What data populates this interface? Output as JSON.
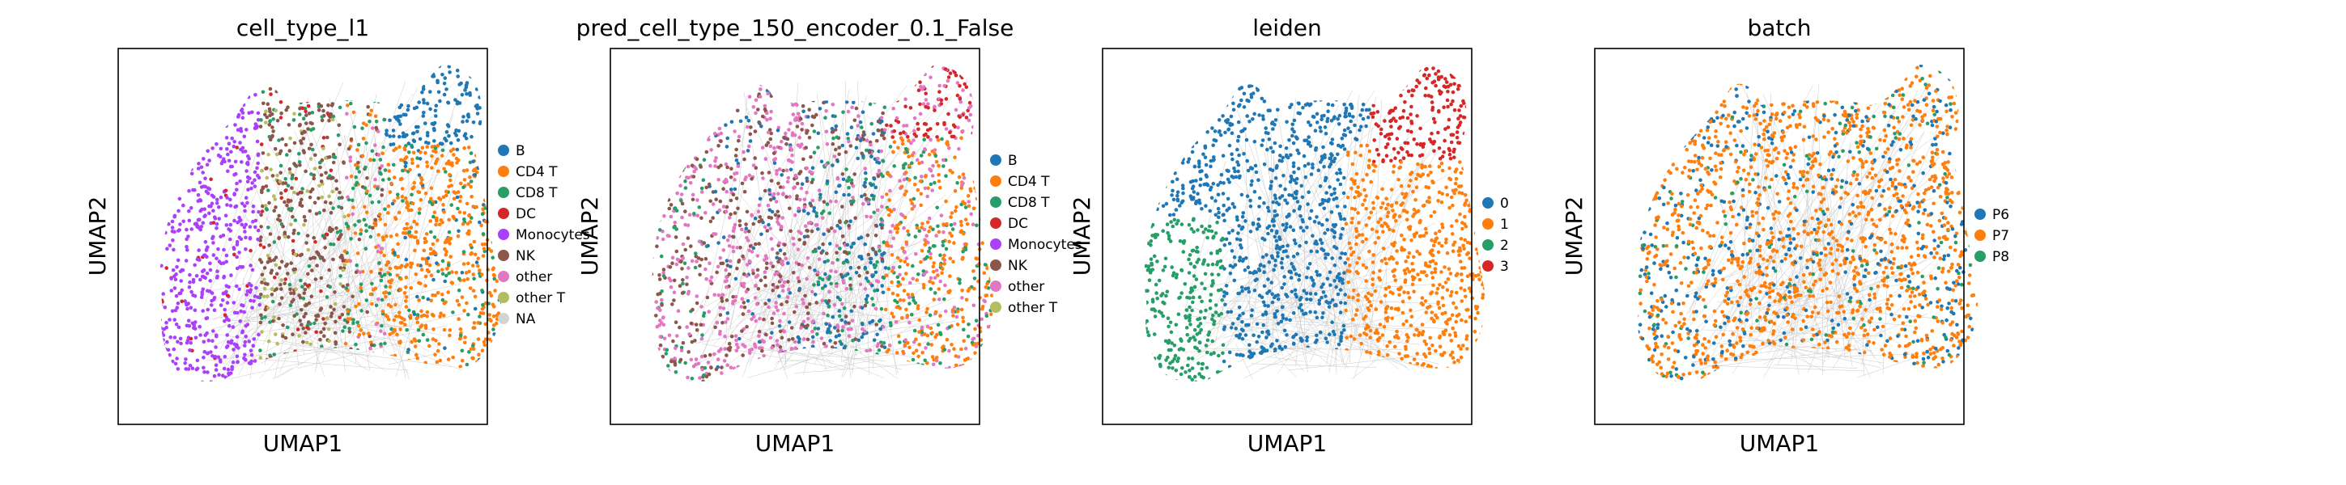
{
  "chart_data": [
    {
      "type": "scatter",
      "title": "cell_type_l1",
      "xlabel": "UMAP1",
      "ylabel": "UMAP2",
      "grid": false,
      "legend_position": "right",
      "legend": [
        {
          "label": "B",
          "color": "#1f77b4"
        },
        {
          "label": "CD4 T",
          "color": "#ff7f0e"
        },
        {
          "label": "CD8 T",
          "color": "#279e68"
        },
        {
          "label": "DC",
          "color": "#d62728"
        },
        {
          "label": "Monocytes",
          "color": "#aa40fc"
        },
        {
          "label": "NK",
          "color": "#8c564b"
        },
        {
          "label": "other",
          "color": "#e377c2"
        },
        {
          "label": "other T",
          "color": "#b5bd61"
        },
        {
          "label": "NA",
          "color": "#d3d3d3"
        }
      ]
    },
    {
      "type": "scatter",
      "title": "pred_cell_type_150_encoder_0.1_False",
      "xlabel": "UMAP1",
      "ylabel": "UMAP2",
      "grid": false,
      "legend_position": "right",
      "legend": [
        {
          "label": "B",
          "color": "#1f77b4"
        },
        {
          "label": "CD4 T",
          "color": "#ff7f0e"
        },
        {
          "label": "CD8 T",
          "color": "#279e68"
        },
        {
          "label": "DC",
          "color": "#d62728"
        },
        {
          "label": "Monocytes",
          "color": "#aa40fc"
        },
        {
          "label": "NK",
          "color": "#8c564b"
        },
        {
          "label": "other",
          "color": "#e377c2"
        },
        {
          "label": "other T",
          "color": "#b5bd61"
        }
      ]
    },
    {
      "type": "scatter",
      "title": "leiden",
      "xlabel": "UMAP1",
      "ylabel": "UMAP2",
      "grid": false,
      "legend_position": "right",
      "legend": [
        {
          "label": "0",
          "color": "#1f77b4"
        },
        {
          "label": "1",
          "color": "#ff7f0e"
        },
        {
          "label": "2",
          "color": "#279e68"
        },
        {
          "label": "3",
          "color": "#d62728"
        }
      ]
    },
    {
      "type": "scatter",
      "title": "batch",
      "xlabel": "UMAP1",
      "ylabel": "UMAP2",
      "grid": false,
      "legend_position": "right",
      "legend": [
        {
          "label": "P6",
          "color": "#1f77b4"
        },
        {
          "label": "P7",
          "color": "#ff7f0e"
        },
        {
          "label": "P8",
          "color": "#279e68"
        }
      ]
    }
  ]
}
